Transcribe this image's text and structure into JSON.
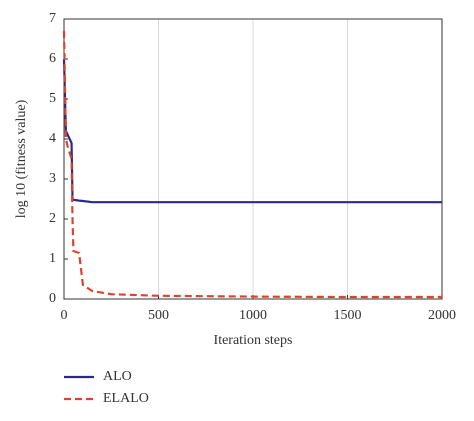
{
  "chart_data": {
    "type": "line",
    "xlabel": "Iteration steps",
    "ylabel": "log 10 (fitness value)",
    "x": [
      0,
      10,
      20,
      40,
      45,
      50,
      80,
      100,
      150,
      250,
      500,
      1000,
      1500,
      2000
    ],
    "series": [
      {
        "name": "ALO",
        "color": "#2b2a8c",
        "dash": false,
        "values": [
          6.0,
          4.2,
          4.1,
          3.9,
          2.5,
          2.48,
          2.46,
          2.45,
          2.42,
          2.42,
          2.42,
          2.42,
          2.42,
          2.42
        ]
      },
      {
        "name": "ELALO",
        "color": "#d9442a",
        "dash": true,
        "values": [
          6.7,
          4.0,
          3.8,
          3.5,
          2.0,
          1.2,
          1.15,
          0.35,
          0.2,
          0.12,
          0.08,
          0.06,
          0.05,
          0.05
        ]
      }
    ],
    "xlim": [
      0,
      2000
    ],
    "xticks": [
      0,
      500,
      1000,
      1500,
      2000
    ],
    "ylim": [
      0,
      7
    ],
    "yticks": [
      0,
      1,
      2,
      3,
      4,
      5,
      6,
      7
    ],
    "grid": "x",
    "legend": "below"
  }
}
